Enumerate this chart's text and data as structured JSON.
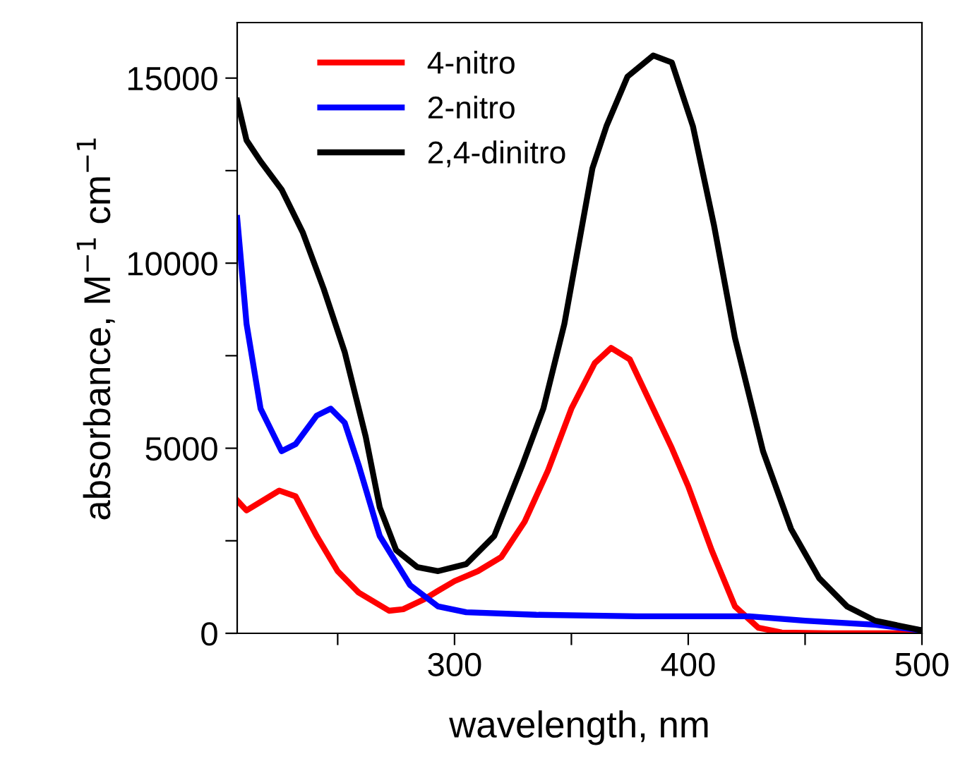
{
  "chart_data": {
    "type": "line",
    "xlabel": "wavelength, nm",
    "ylabel": "absorbance, M$^{−1}$ cm$^{−1}$",
    "xlim": [
      207,
      500
    ],
    "ylim": [
      0,
      16500
    ],
    "xticks": [
      {
        "value": 250,
        "label": null
      },
      300,
      {
        "value": 350,
        "label": null
      },
      400,
      {
        "value": 450,
        "label": null
      },
      500
    ],
    "yticks": [
      0,
      {
        "value": 2500,
        "label": null
      },
      5000,
      {
        "value": 7500,
        "label": null
      },
      10000,
      {
        "value": 12500,
        "label": null
      },
      15000
    ],
    "legend": "top left",
    "grid": false,
    "marker": "none",
    "line_style": "solid",
    "series": [
      {
        "name": "4-nitro",
        "color": "#ff0000",
        "x": [
          207,
          211,
          223,
          225,
          232,
          241,
          250,
          259,
          272,
          278,
          287,
          293,
          300,
          310,
          320,
          330,
          340,
          350,
          360,
          367,
          375,
          385,
          393,
          400,
          410,
          420,
          430,
          440,
          460,
          500
        ],
        "values": [
          3590,
          3320,
          3780,
          3855,
          3700,
          2630,
          1680,
          1100,
          610,
          650,
          920,
          1150,
          1410,
          1680,
          2060,
          3015,
          4400,
          6070,
          7300,
          7710,
          7400,
          6070,
          5000,
          3970,
          2250,
          725,
          150,
          20,
          0,
          0
        ]
      },
      {
        "name": "2-nitro",
        "color": "#0000ff",
        "x": [
          207,
          211,
          217,
          226,
          232,
          241,
          247,
          253,
          259,
          268,
          281,
          293,
          305,
          335,
          378,
          426,
          450,
          480,
          500
        ],
        "values": [
          11220,
          8360,
          6070,
          4920,
          5110,
          5880,
          6070,
          5690,
          4540,
          2630,
          1300,
          725,
          570,
          500,
          460,
          460,
          340,
          230,
          80
        ]
      },
      {
        "name": "2,4-dinitro",
        "color": "#000000",
        "x": [
          207,
          211,
          217,
          226,
          235,
          244,
          253,
          262,
          268,
          275,
          284,
          293,
          305,
          317,
          329,
          338,
          347,
          359,
          365,
          374,
          385,
          393,
          402,
          411,
          420,
          432,
          444,
          456,
          468,
          480,
          500
        ],
        "values": [
          14390,
          13320,
          12750,
          11990,
          10840,
          9310,
          7600,
          5310,
          3400,
          2250,
          1790,
          1680,
          1870,
          2630,
          4540,
          6070,
          8360,
          12560,
          13700,
          15040,
          15610,
          15420,
          13700,
          11030,
          7980,
          4920,
          2820,
          1490,
          725,
          340,
          80
        ]
      }
    ]
  }
}
